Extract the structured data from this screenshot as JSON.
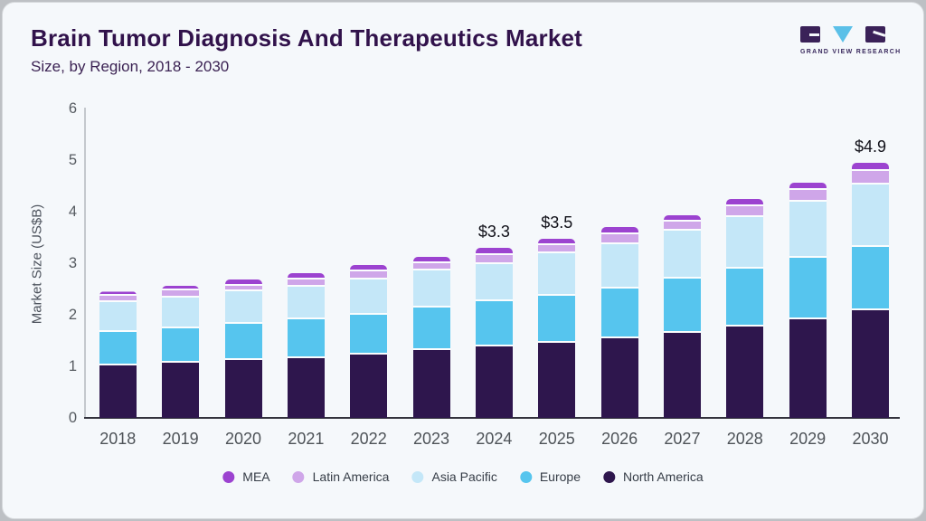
{
  "header": {
    "title": "Brain Tumor Diagnosis And Therapeutics Market",
    "subtitle": "Size, by Region, 2018 - 2030"
  },
  "logo": {
    "brand": "GRAND VIEW RESEARCH",
    "mark_colors": {
      "squares": "#3a2158",
      "triangle": "#5bc0e8"
    }
  },
  "chart_data": {
    "type": "bar",
    "stacked": true,
    "title": "Brain Tumor Diagnosis And Therapeutics Market",
    "subtitle": "Size, by Region, 2018 - 2030",
    "xlabel": "",
    "ylabel": "Market Size (US$B)",
    "ylim": [
      0,
      6
    ],
    "ytick_labels": [
      "0",
      "1",
      "2",
      "3",
      "4",
      "5",
      "6"
    ],
    "grid": false,
    "categories": [
      "2018",
      "2019",
      "2020",
      "2021",
      "2022",
      "2023",
      "2024",
      "2025",
      "2026",
      "2027",
      "2028",
      "2029",
      "2030"
    ],
    "series": [
      {
        "name": "North America",
        "color": "#2e164d",
        "values": [
          1.02,
          1.07,
          1.12,
          1.16,
          1.23,
          1.31,
          1.38,
          1.46,
          1.55,
          1.65,
          1.78,
          1.92,
          2.08
        ]
      },
      {
        "name": "Europe",
        "color": "#56c5ee",
        "values": [
          0.65,
          0.67,
          0.7,
          0.76,
          0.77,
          0.83,
          0.88,
          0.91,
          0.96,
          1.06,
          1.11,
          1.18,
          1.24
        ]
      },
      {
        "name": "Asia Pacific",
        "color": "#c4e7f8",
        "values": [
          0.57,
          0.6,
          0.63,
          0.62,
          0.68,
          0.72,
          0.73,
          0.82,
          0.86,
          0.92,
          1.0,
          1.09,
          1.21
        ]
      },
      {
        "name": "Latin America",
        "color": "#cfa6e9",
        "values": [
          0.13,
          0.13,
          0.12,
          0.14,
          0.16,
          0.14,
          0.16,
          0.16,
          0.19,
          0.17,
          0.22,
          0.23,
          0.26
        ]
      },
      {
        "name": "MEA",
        "color": "#9c43d0",
        "values": [
          0.08,
          0.1,
          0.11,
          0.13,
          0.13,
          0.13,
          0.15,
          0.13,
          0.14,
          0.13,
          0.14,
          0.14,
          0.15
        ]
      }
    ],
    "bar_labels": [
      "",
      "",
      "",
      "",
      "",
      "",
      "$3.3",
      "$3.5",
      "",
      "",
      "",
      "",
      "$4.9"
    ],
    "legend": [
      "MEA",
      "Latin America",
      "Asia Pacific",
      "Europe",
      "North America"
    ],
    "legend_position": "bottom"
  },
  "colors": {
    "card_background": "#f5f8fb",
    "outer_frame": "#bdc0c4",
    "title_text": "#31124b",
    "axis_text": "#565b61",
    "baseline": "#33333d"
  }
}
